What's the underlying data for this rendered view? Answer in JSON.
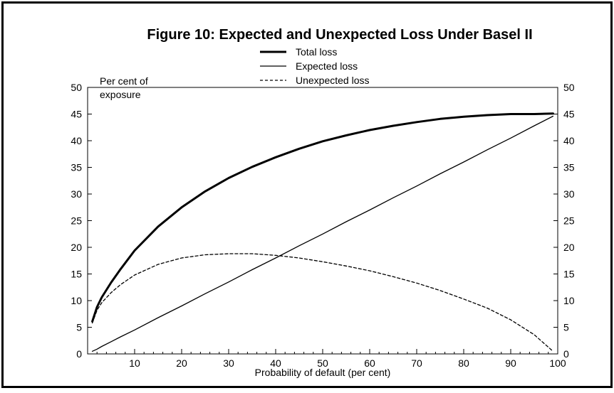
{
  "chart_data": {
    "type": "line",
    "title": "Figure 10: Expected and Unexpected Loss Under Basel II",
    "xlabel": "Probability of default (per cent)",
    "ylabel_lines": [
      "Per cent of",
      "exposure"
    ],
    "xlim": [
      0,
      100
    ],
    "ylim": [
      0,
      50
    ],
    "x_ticks": [
      10,
      20,
      30,
      40,
      50,
      60,
      70,
      80,
      90,
      100
    ],
    "y_ticks": [
      0,
      5,
      10,
      15,
      20,
      25,
      30,
      35,
      40,
      45,
      50
    ],
    "grid": false,
    "legend_position": "top-center",
    "x": [
      1,
      2,
      3,
      5,
      7,
      10,
      15,
      20,
      25,
      30,
      35,
      40,
      45,
      50,
      55,
      60,
      65,
      70,
      75,
      80,
      85,
      90,
      95,
      99
    ],
    "series": [
      {
        "name": "Total loss",
        "style": "thick",
        "values": [
          6.1,
          8.8,
          10.6,
          13.4,
          15.9,
          19.4,
          23.9,
          27.5,
          30.5,
          33.0,
          35.1,
          36.9,
          38.5,
          39.9,
          41.0,
          42.0,
          42.8,
          43.5,
          44.1,
          44.5,
          44.8,
          45.0,
          45.0,
          45.1
        ]
      },
      {
        "name": "Expected loss",
        "style": "solid",
        "values": [
          0.5,
          0.9,
          1.4,
          2.3,
          3.2,
          4.5,
          6.8,
          9.0,
          11.3,
          13.5,
          15.8,
          18.0,
          20.3,
          22.5,
          24.8,
          27.0,
          29.3,
          31.5,
          33.8,
          36.0,
          38.3,
          40.5,
          42.8,
          44.6
        ]
      },
      {
        "name": "Unexpected loss",
        "style": "dashed",
        "values": [
          5.8,
          8.2,
          9.6,
          11.5,
          13.0,
          14.8,
          16.8,
          18.0,
          18.6,
          18.8,
          18.8,
          18.5,
          18.0,
          17.3,
          16.5,
          15.6,
          14.5,
          13.3,
          11.9,
          10.3,
          8.6,
          6.4,
          3.6,
          0.5
        ]
      }
    ]
  }
}
